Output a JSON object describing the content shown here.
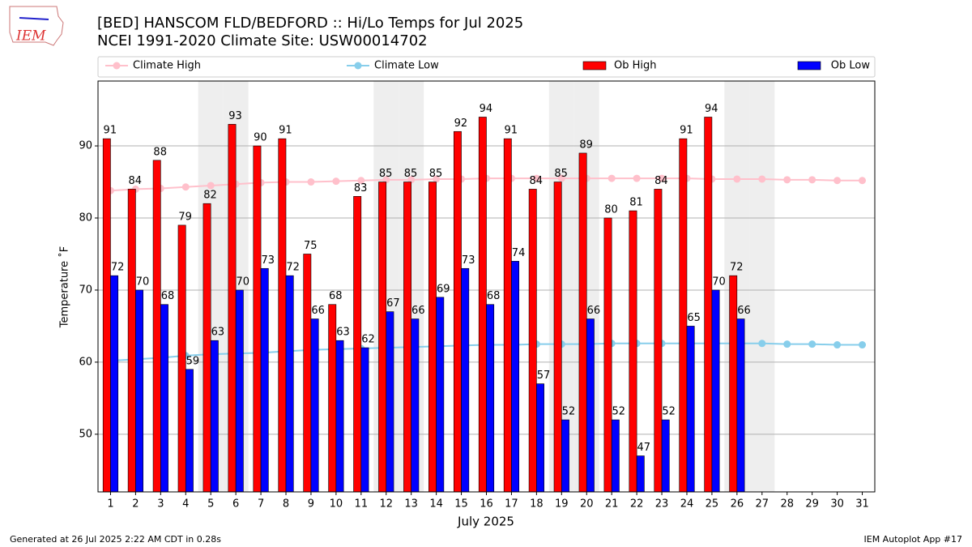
{
  "logo": {
    "text": "IEM"
  },
  "footer": {
    "left": "Generated at 26 Jul 2025 2:22 AM CDT in 0.28s",
    "right": "IEM Autoplot App #17"
  },
  "chart_data": {
    "type": "bar",
    "title": "[BED] HANSCOM FLD/BEDFORD :: Hi/Lo Temps for Jul 2025",
    "subtitle": "NCEI 1991-2020 Climate Site: USW00014702",
    "x_label": "July 2025",
    "y_label": "Temperature ˚F",
    "x": [
      1,
      2,
      3,
      4,
      5,
      6,
      7,
      8,
      9,
      10,
      11,
      12,
      13,
      14,
      15,
      16,
      17,
      18,
      19,
      20,
      21,
      22,
      23,
      24,
      25,
      26,
      27,
      28,
      29,
      30,
      31
    ],
    "xlim": [
      0.5,
      31.5
    ],
    "xticks": [
      1,
      2,
      3,
      4,
      5,
      6,
      7,
      8,
      9,
      10,
      11,
      12,
      13,
      14,
      15,
      16,
      17,
      18,
      19,
      20,
      21,
      22,
      23,
      24,
      25,
      26,
      27,
      28,
      29,
      30,
      31
    ],
    "ylim": [
      42,
      99
    ],
    "yticks": [
      50,
      60,
      70,
      80,
      90
    ],
    "grid": true,
    "shaded_days": [
      5,
      6,
      12,
      13,
      19,
      20,
      26,
      27
    ],
    "shade_color": "#eeeeee",
    "legend": "top",
    "series": [
      {
        "name": "Climate High",
        "type": "line",
        "color": "#ffc0cb",
        "values": [
          83.8,
          84.0,
          84.1,
          84.3,
          84.5,
          84.7,
          84.9,
          85.0,
          85.0,
          85.1,
          85.2,
          85.3,
          85.3,
          85.4,
          85.4,
          85.5,
          85.5,
          85.5,
          85.5,
          85.5,
          85.5,
          85.5,
          85.5,
          85.5,
          85.4,
          85.4,
          85.4,
          85.3,
          85.3,
          85.2,
          85.2
        ]
      },
      {
        "name": "Climate Low",
        "type": "line",
        "color": "#87ceeb",
        "values": [
          60.2,
          60.4,
          60.6,
          60.9,
          61.1,
          61.2,
          61.3,
          61.5,
          61.7,
          61.8,
          61.9,
          62.0,
          62.1,
          62.2,
          62.3,
          62.4,
          62.4,
          62.5,
          62.5,
          62.5,
          62.6,
          62.6,
          62.6,
          62.6,
          62.6,
          62.6,
          62.6,
          62.5,
          62.5,
          62.4,
          62.4
        ]
      },
      {
        "name": "Ob High",
        "type": "bar",
        "color": "#ff0000",
        "values": [
          91,
          84,
          88,
          79,
          82,
          93,
          90,
          91,
          75,
          68,
          83,
          85,
          85,
          85,
          92,
          94,
          91,
          84,
          85,
          89,
          80,
          81,
          84,
          91,
          94,
          72,
          null,
          null,
          null,
          null,
          null
        ]
      },
      {
        "name": "Ob Low",
        "type": "bar",
        "color": "#0000ff",
        "values": [
          72,
          70,
          68,
          59,
          63,
          70,
          73,
          72,
          66,
          63,
          62,
          67,
          66,
          69,
          73,
          68,
          74,
          57,
          52,
          66,
          52,
          47,
          52,
          65,
          70,
          66,
          null,
          null,
          null,
          null,
          null
        ]
      }
    ]
  }
}
